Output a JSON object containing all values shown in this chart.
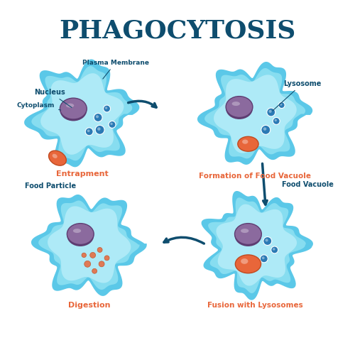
{
  "title": "PHAGOCYTOSIS",
  "title_color": "#0e4d6e",
  "title_fontsize": 26,
  "bg_color": "white",
  "cell_outer_color": "#5bc8e8",
  "cell_inner_color": "#87ddf0",
  "cell_fill_color": "#aeeaf7",
  "nucleus_color": "#8b6a9e",
  "nucleus_dark": "#5e3d72",
  "organelle_color": "#2a7ab5",
  "food_particle_color": "#e8663a",
  "label_color": "#0e4d6e",
  "stage_label_color": "#e8663a",
  "arrow_color": "#0e4d6e",
  "labels": {
    "top_left": [
      "Nucleus",
      "Plasma Membrane",
      "Cytoplasm"
    ],
    "stages": [
      "Entrapment",
      "Formation of Food Vacuole",
      "Fusion with Lysosomes",
      "Digestion"
    ],
    "extra": [
      "Food Particle",
      "Lysosome",
      "Food Vacuole"
    ]
  }
}
